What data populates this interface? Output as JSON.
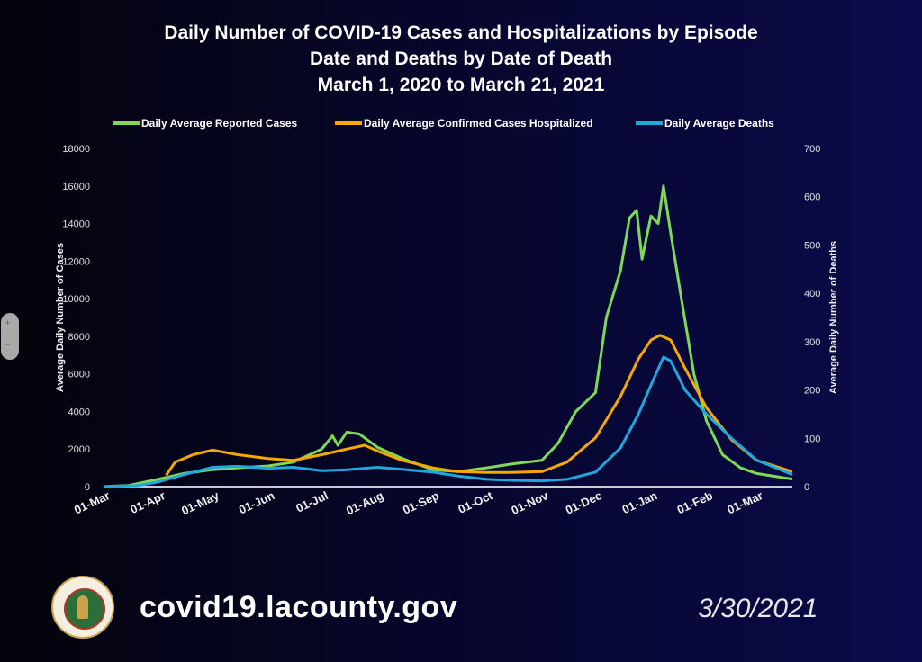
{
  "chart_data": {
    "type": "line",
    "title": [
      "Daily Number of COVID-19 Cases and Hospitalizations by Episode",
      "Date and Deaths by Date of Death",
      "March 1, 2020 to March 21, 2021"
    ],
    "ylabel": "Average Daily Number of Cases",
    "y2label": "Average Daily Number of Deaths",
    "ylim": [
      0,
      18000
    ],
    "y2lim": [
      0,
      700
    ],
    "yticks": [
      "0",
      "2000",
      "4000",
      "6000",
      "8000",
      "10000",
      "12000",
      "14000",
      "16000",
      "18000"
    ],
    "y2ticks": [
      "0",
      "100",
      "200",
      "300",
      "400",
      "500",
      "600",
      "700"
    ],
    "xlim": [
      "2020-03-01",
      "2021-03-21"
    ],
    "xticks": [
      {
        "date": "2020-03-01",
        "label": "01-Mar"
      },
      {
        "date": "2020-04-01",
        "label": "01-Apr"
      },
      {
        "date": "2020-05-01",
        "label": "01-May"
      },
      {
        "date": "2020-06-01",
        "label": "01-Jun"
      },
      {
        "date": "2020-07-01",
        "label": "01-Jul"
      },
      {
        "date": "2020-08-01",
        "label": "01-Aug"
      },
      {
        "date": "2020-09-01",
        "label": "01-Sep"
      },
      {
        "date": "2020-10-01",
        "label": "01-Oct"
      },
      {
        "date": "2020-11-01",
        "label": "01-Nov"
      },
      {
        "date": "2020-12-01",
        "label": "01-Dec"
      },
      {
        "date": "2021-01-01",
        "label": "01-Jan"
      },
      {
        "date": "2021-02-01",
        "label": "01-Feb"
      },
      {
        "date": "2021-03-01",
        "label": "01-Mar"
      }
    ],
    "legend_position": "top",
    "series": [
      {
        "name": "Daily Average Reported Cases",
        "color": "#7ed957",
        "axis": "left",
        "points": [
          [
            "2020-03-01",
            0
          ],
          [
            "2020-03-15",
            60
          ],
          [
            "2020-04-01",
            400
          ],
          [
            "2020-04-15",
            700
          ],
          [
            "2020-05-01",
            900
          ],
          [
            "2020-05-15",
            1000
          ],
          [
            "2020-06-01",
            1100
          ],
          [
            "2020-06-15",
            1300
          ],
          [
            "2020-07-01",
            2000
          ],
          [
            "2020-07-07",
            2700
          ],
          [
            "2020-07-10",
            2200
          ],
          [
            "2020-07-15",
            2900
          ],
          [
            "2020-07-22",
            2800
          ],
          [
            "2020-08-01",
            2100
          ],
          [
            "2020-08-15",
            1500
          ],
          [
            "2020-09-01",
            900
          ],
          [
            "2020-09-15",
            800
          ],
          [
            "2020-10-01",
            1000
          ],
          [
            "2020-10-15",
            1200
          ],
          [
            "2020-11-01",
            1400
          ],
          [
            "2020-11-10",
            2300
          ],
          [
            "2020-11-20",
            4000
          ],
          [
            "2020-12-01",
            5000
          ],
          [
            "2020-12-07",
            9000
          ],
          [
            "2020-12-15",
            11500
          ],
          [
            "2020-12-20",
            14300
          ],
          [
            "2020-12-24",
            14700
          ],
          [
            "2020-12-27",
            12100
          ],
          [
            "2021-01-01",
            14400
          ],
          [
            "2021-01-05",
            14000
          ],
          [
            "2021-01-08",
            16000
          ],
          [
            "2021-01-12",
            13500
          ],
          [
            "2021-01-18",
            10000
          ],
          [
            "2021-01-25",
            6000
          ],
          [
            "2021-02-01",
            3500
          ],
          [
            "2021-02-10",
            1700
          ],
          [
            "2021-02-20",
            1000
          ],
          [
            "2021-03-01",
            700
          ],
          [
            "2021-03-21",
            400
          ]
        ]
      },
      {
        "name": "Daily Average Confirmed Cases Hospitalized",
        "color": "#f5a800",
        "axis": "left",
        "points": [
          [
            "2020-04-05",
            600
          ],
          [
            "2020-04-10",
            1300
          ],
          [
            "2020-04-20",
            1700
          ],
          [
            "2020-05-01",
            1950
          ],
          [
            "2020-05-15",
            1700
          ],
          [
            "2020-06-01",
            1500
          ],
          [
            "2020-06-15",
            1400
          ],
          [
            "2020-07-01",
            1700
          ],
          [
            "2020-07-15",
            2000
          ],
          [
            "2020-07-25",
            2200
          ],
          [
            "2020-08-01",
            1900
          ],
          [
            "2020-08-15",
            1400
          ],
          [
            "2020-09-01",
            1000
          ],
          [
            "2020-09-15",
            800
          ],
          [
            "2020-10-01",
            750
          ],
          [
            "2020-10-15",
            750
          ],
          [
            "2020-11-01",
            800
          ],
          [
            "2020-11-15",
            1300
          ],
          [
            "2020-12-01",
            2600
          ],
          [
            "2020-12-15",
            4800
          ],
          [
            "2020-12-25",
            6800
          ],
          [
            "2021-01-01",
            7800
          ],
          [
            "2021-01-06",
            8050
          ],
          [
            "2021-01-12",
            7800
          ],
          [
            "2021-01-20",
            6300
          ],
          [
            "2021-02-01",
            4200
          ],
          [
            "2021-02-15",
            2500
          ],
          [
            "2021-03-01",
            1400
          ],
          [
            "2021-03-21",
            800
          ]
        ]
      },
      {
        "name": "Daily Average Deaths",
        "color": "#1fa8e0",
        "axis": "right",
        "points": [
          [
            "2020-03-01",
            0
          ],
          [
            "2020-03-20",
            2
          ],
          [
            "2020-04-01",
            10
          ],
          [
            "2020-04-15",
            25
          ],
          [
            "2020-05-01",
            40
          ],
          [
            "2020-05-15",
            42
          ],
          [
            "2020-06-01",
            38
          ],
          [
            "2020-06-15",
            40
          ],
          [
            "2020-07-01",
            33
          ],
          [
            "2020-07-15",
            35
          ],
          [
            "2020-08-01",
            40
          ],
          [
            "2020-08-15",
            36
          ],
          [
            "2020-09-01",
            30
          ],
          [
            "2020-09-15",
            22
          ],
          [
            "2020-10-01",
            15
          ],
          [
            "2020-10-15",
            13
          ],
          [
            "2020-11-01",
            12
          ],
          [
            "2020-11-15",
            15
          ],
          [
            "2020-12-01",
            30
          ],
          [
            "2020-12-15",
            80
          ],
          [
            "2020-12-25",
            150
          ],
          [
            "2021-01-01",
            210
          ],
          [
            "2021-01-08",
            268
          ],
          [
            "2021-01-12",
            260
          ],
          [
            "2021-01-20",
            200
          ],
          [
            "2021-02-01",
            150
          ],
          [
            "2021-02-15",
            100
          ],
          [
            "2021-03-01",
            55
          ],
          [
            "2021-03-21",
            25
          ]
        ]
      }
    ]
  },
  "footer": {
    "url": "covid19.lacounty.gov",
    "date": "3/30/2021"
  },
  "zoom_controls": {
    "zoom_in": "+",
    "zoom_out": "−"
  }
}
